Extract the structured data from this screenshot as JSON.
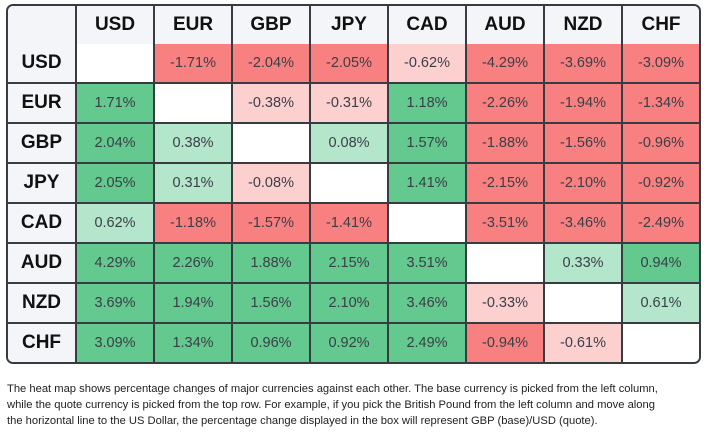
{
  "heatmap": {
    "currencies": [
      "USD",
      "EUR",
      "GBP",
      "JPY",
      "CAD",
      "AUD",
      "NZD",
      "CHF"
    ],
    "colors": {
      "strong_negative": "#f88080",
      "light_negative": "#fdd0d0",
      "strong_positive": "#63c98e",
      "light_positive": "#b3e6cb",
      "empty": "#ffffff",
      "header_bg": "#f4f5f8"
    },
    "rows": [
      {
        "base": "USD",
        "cells": [
          {
            "value": "",
            "tone": "empty"
          },
          {
            "value": "-1.71%",
            "tone": "strong-neg"
          },
          {
            "value": "-2.04%",
            "tone": "strong-neg"
          },
          {
            "value": "-2.05%",
            "tone": "strong-neg"
          },
          {
            "value": "-0.62%",
            "tone": "light-neg"
          },
          {
            "value": "-4.29%",
            "tone": "strong-neg"
          },
          {
            "value": "-3.69%",
            "tone": "strong-neg"
          },
          {
            "value": "-3.09%",
            "tone": "strong-neg"
          }
        ]
      },
      {
        "base": "EUR",
        "cells": [
          {
            "value": "1.71%",
            "tone": "strong-pos"
          },
          {
            "value": "",
            "tone": "empty"
          },
          {
            "value": "-0.38%",
            "tone": "light-neg"
          },
          {
            "value": "-0.31%",
            "tone": "light-neg"
          },
          {
            "value": "1.18%",
            "tone": "strong-pos"
          },
          {
            "value": "-2.26%",
            "tone": "strong-neg"
          },
          {
            "value": "-1.94%",
            "tone": "strong-neg"
          },
          {
            "value": "-1.34%",
            "tone": "strong-neg"
          }
        ]
      },
      {
        "base": "GBP",
        "cells": [
          {
            "value": "2.04%",
            "tone": "strong-pos"
          },
          {
            "value": "0.38%",
            "tone": "light-pos"
          },
          {
            "value": "",
            "tone": "empty"
          },
          {
            "value": "0.08%",
            "tone": "light-pos"
          },
          {
            "value": "1.57%",
            "tone": "strong-pos"
          },
          {
            "value": "-1.88%",
            "tone": "strong-neg"
          },
          {
            "value": "-1.56%",
            "tone": "strong-neg"
          },
          {
            "value": "-0.96%",
            "tone": "strong-neg"
          }
        ]
      },
      {
        "base": "JPY",
        "cells": [
          {
            "value": "2.05%",
            "tone": "strong-pos"
          },
          {
            "value": "0.31%",
            "tone": "light-pos"
          },
          {
            "value": "-0.08%",
            "tone": "light-neg"
          },
          {
            "value": "",
            "tone": "empty"
          },
          {
            "value": "1.41%",
            "tone": "strong-pos"
          },
          {
            "value": "-2.15%",
            "tone": "strong-neg"
          },
          {
            "value": "-2.10%",
            "tone": "strong-neg"
          },
          {
            "value": "-0.92%",
            "tone": "strong-neg"
          }
        ]
      },
      {
        "base": "CAD",
        "cells": [
          {
            "value": "0.62%",
            "tone": "light-pos"
          },
          {
            "value": "-1.18%",
            "tone": "strong-neg"
          },
          {
            "value": "-1.57%",
            "tone": "strong-neg"
          },
          {
            "value": "-1.41%",
            "tone": "strong-neg"
          },
          {
            "value": "",
            "tone": "empty"
          },
          {
            "value": "-3.51%",
            "tone": "strong-neg"
          },
          {
            "value": "-3.46%",
            "tone": "strong-neg"
          },
          {
            "value": "-2.49%",
            "tone": "strong-neg"
          }
        ]
      },
      {
        "base": "AUD",
        "cells": [
          {
            "value": "4.29%",
            "tone": "strong-pos"
          },
          {
            "value": "2.26%",
            "tone": "strong-pos"
          },
          {
            "value": "1.88%",
            "tone": "strong-pos"
          },
          {
            "value": "2.15%",
            "tone": "strong-pos"
          },
          {
            "value": "3.51%",
            "tone": "strong-pos"
          },
          {
            "value": "",
            "tone": "empty"
          },
          {
            "value": "0.33%",
            "tone": "light-pos"
          },
          {
            "value": "0.94%",
            "tone": "strong-pos"
          }
        ]
      },
      {
        "base": "NZD",
        "cells": [
          {
            "value": "3.69%",
            "tone": "strong-pos"
          },
          {
            "value": "1.94%",
            "tone": "strong-pos"
          },
          {
            "value": "1.56%",
            "tone": "strong-pos"
          },
          {
            "value": "2.10%",
            "tone": "strong-pos"
          },
          {
            "value": "3.46%",
            "tone": "strong-pos"
          },
          {
            "value": "-0.33%",
            "tone": "light-neg"
          },
          {
            "value": "",
            "tone": "empty"
          },
          {
            "value": "0.61%",
            "tone": "light-pos"
          }
        ]
      },
      {
        "base": "CHF",
        "cells": [
          {
            "value": "3.09%",
            "tone": "strong-pos"
          },
          {
            "value": "1.34%",
            "tone": "strong-pos"
          },
          {
            "value": "0.96%",
            "tone": "strong-pos"
          },
          {
            "value": "0.92%",
            "tone": "strong-pos"
          },
          {
            "value": "2.49%",
            "tone": "strong-pos"
          },
          {
            "value": "-0.94%",
            "tone": "strong-neg"
          },
          {
            "value": "-0.61%",
            "tone": "light-neg"
          },
          {
            "value": "",
            "tone": "empty"
          }
        ]
      }
    ]
  },
  "caption": {
    "lines": [
      "The heat map shows percentage changes of major currencies against each other. The base currency is picked from the left column,",
      "while the quote currency is picked from the top row. For example, if you pick the British Pound from the left column and move along",
      "the horizontal line to the US Dollar, the percentage change displayed in the box will represent GBP (base)/USD (quote)."
    ]
  }
}
